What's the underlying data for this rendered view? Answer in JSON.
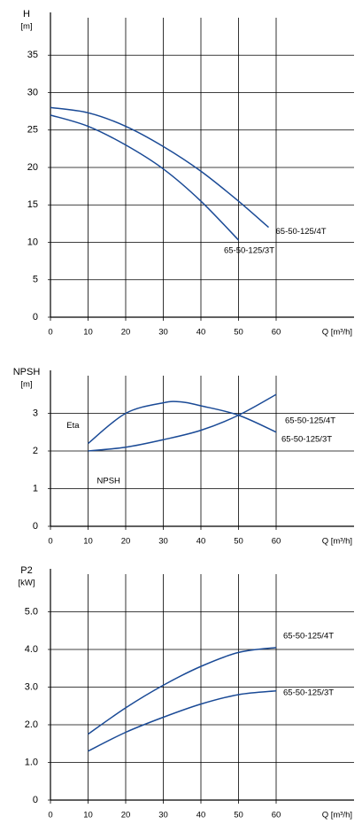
{
  "chart_data": [
    {
      "type": "line",
      "ylabel": "H",
      "yunit": "[m]",
      "xlabel": "Q [m³/h]",
      "xlim": [
        0,
        80
      ],
      "ylim": [
        0,
        40
      ],
      "xticks": [
        0,
        10,
        20,
        30,
        40,
        50,
        60
      ],
      "yticks": [
        0,
        5,
        10,
        15,
        20,
        25,
        30,
        35
      ],
      "series": [
        {
          "name": "65-50-125/4T",
          "color": "#1a4a96",
          "x": [
            0,
            10,
            20,
            30,
            40,
            50,
            58
          ],
          "values": [
            28,
            27.3,
            25.5,
            22.8,
            19.5,
            15.5,
            12
          ]
        },
        {
          "name": "65-50-125/3T",
          "color": "#1a4a96",
          "x": [
            0,
            10,
            20,
            30,
            40,
            50
          ],
          "values": [
            27,
            25.5,
            23,
            19.8,
            15.5,
            10.3
          ]
        }
      ]
    },
    {
      "type": "line",
      "ylabel": "NPSH",
      "yunit": "[m]",
      "xlabel": "Q [m³/h]",
      "xlim": [
        0,
        80
      ],
      "ylim": [
        0,
        4
      ],
      "xticks": [
        0,
        10,
        20,
        30,
        40,
        50,
        60
      ],
      "yticks": [
        0,
        1,
        2,
        3
      ],
      "series": [
        {
          "name": "Eta",
          "color": "#1a4a96",
          "x": [
            10,
            20,
            30,
            35,
            40,
            50,
            60
          ],
          "values": [
            2.2,
            3.0,
            3.28,
            3.3,
            3.2,
            2.95,
            2.5
          ]
        },
        {
          "name": "NPSH",
          "color": "#1a4a96",
          "x": [
            10,
            20,
            30,
            40,
            50,
            60
          ],
          "values": [
            2.0,
            2.1,
            2.3,
            2.55,
            2.95,
            3.5
          ]
        }
      ],
      "annotations": [
        "65-50-125/4T",
        "65-50-125/3T"
      ]
    },
    {
      "type": "line",
      "ylabel": "P2",
      "yunit": "[kW]",
      "xlabel": "Q [m³/h]",
      "xlim": [
        0,
        80
      ],
      "ylim": [
        0,
        6
      ],
      "xticks": [
        0,
        10,
        20,
        30,
        40,
        50,
        60
      ],
      "yticks": [
        0,
        {
          "value": 1,
          "label": "1.0"
        },
        {
          "value": 2,
          "label": "2.0"
        },
        {
          "value": 3,
          "label": "3.0"
        },
        {
          "value": 4,
          "label": "4.0"
        },
        {
          "value": 5,
          "label": "5.0"
        }
      ],
      "series": [
        {
          "name": "65-50-125/4T",
          "color": "#1a4a96",
          "x": [
            10,
            20,
            30,
            40,
            50,
            60
          ],
          "values": [
            1.75,
            2.45,
            3.05,
            3.55,
            3.92,
            4.05
          ]
        },
        {
          "name": "65-50-125/3T",
          "color": "#1a4a96",
          "x": [
            10,
            20,
            30,
            40,
            50,
            60
          ],
          "values": [
            1.3,
            1.8,
            2.2,
            2.55,
            2.8,
            2.9
          ]
        }
      ]
    }
  ]
}
